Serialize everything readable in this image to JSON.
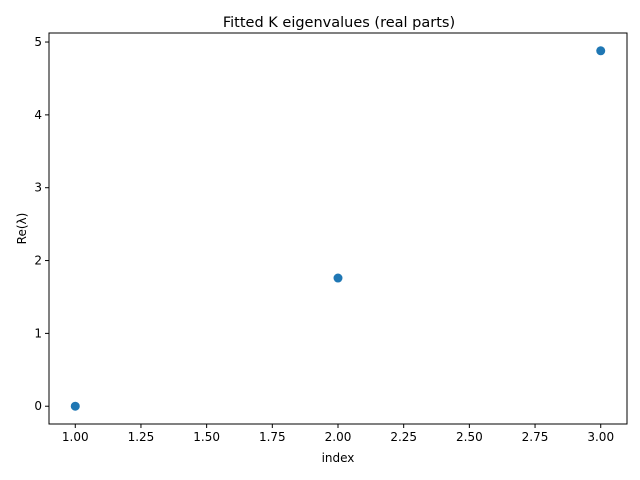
{
  "chart_data": {
    "type": "scatter",
    "title": "Fitted K eigenvalues (real parts)",
    "xlabel": "index",
    "ylabel": "Re(λ)",
    "x": [
      1,
      2,
      3
    ],
    "y": [
      0.0,
      1.76,
      4.88
    ],
    "xlim": [
      0.9,
      3.1
    ],
    "ylim": [
      -0.244,
      5.124
    ],
    "xticks": [
      1.0,
      1.25,
      1.5,
      1.75,
      2.0,
      2.25,
      2.5,
      2.75,
      3.0
    ],
    "xtick_labels": [
      "1.00",
      "1.25",
      "1.50",
      "1.75",
      "2.00",
      "2.25",
      "2.50",
      "2.75",
      "3.00"
    ],
    "yticks": [
      0,
      1,
      2,
      3,
      4,
      5
    ],
    "ytick_labels": [
      "0",
      "1",
      "2",
      "3",
      "4",
      "5"
    ],
    "grid": false,
    "marker_color": "#1f77b4"
  }
}
